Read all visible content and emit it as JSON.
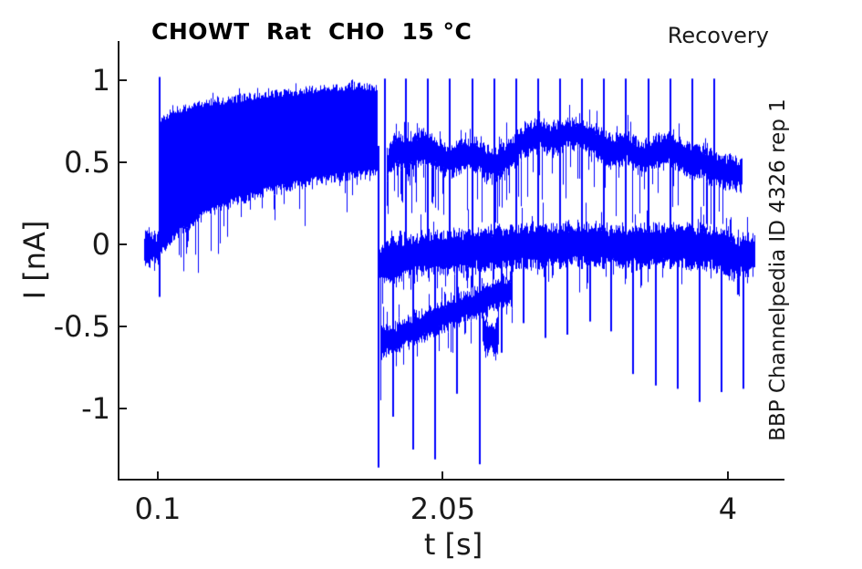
{
  "header": {
    "title": "CHOWT  Rat  CHO  15 °C",
    "corner_note": "Recovery"
  },
  "side_note": "BBP Channelpedia ID 4326 rep 1",
  "chart_data": {
    "type": "line",
    "title": "CHOWT  Rat  CHO  15 °C",
    "xlabel": "t [s]",
    "ylabel": "I [nA]",
    "xticks": [
      0.1,
      2.05,
      4
    ],
    "xtick_labels": [
      "0.1",
      "2.05",
      "4"
    ],
    "yticks": [
      1,
      0.5,
      0,
      -0.5,
      -1
    ],
    "ytick_labels": [
      "1",
      "0.5",
      "0",
      "-0.5",
      "-1"
    ],
    "xlim": [
      -0.168,
      4.375
    ],
    "ylim": [
      -1.428,
      1.239
    ],
    "grid": false,
    "legend": null,
    "trace_color": "#0000ff",
    "axis_color": "#1a1a1a",
    "annotations": [
      "Recovery",
      "BBP Channelpedia ID 4326 rep 1"
    ],
    "signal": {
      "description": "Noisy whole-cell current trace (recovery protocol): baseline at 0 nA, long noisy depolarizing step rising to ~0.95 nA until t=1.6 s, then repeated test pulses every ~0.15 s with spikes to +1 nA and down to -1.35 nA over three noisy bands (~0.55, ~0, ramp -0.6 to -0.3 nA)",
      "baseline": {
        "t_range": [
          0.0,
          0.1
        ],
        "center": 0.0,
        "half_width": 0.12
      },
      "onset_spike": {
        "t": 0.1,
        "from": -0.32,
        "to": 1.02
      },
      "phase1_band": {
        "t_range": [
          0.1,
          1.596
        ],
        "upper_envelope": [
          [
            0.1,
            0.74
          ],
          [
            0.2,
            0.81
          ],
          [
            0.4,
            0.85
          ],
          [
            0.7,
            0.89
          ],
          [
            1.0,
            0.92
          ],
          [
            1.3,
            0.95
          ],
          [
            1.5,
            0.96
          ],
          [
            1.596,
            0.94
          ]
        ],
        "lower_envelope": [
          [
            0.1,
            -0.05
          ],
          [
            0.15,
            0.02
          ],
          [
            0.25,
            0.11
          ],
          [
            0.4,
            0.2
          ],
          [
            0.6,
            0.28
          ],
          [
            0.8,
            0.34
          ],
          [
            1.0,
            0.38
          ],
          [
            1.2,
            0.42
          ],
          [
            1.45,
            0.45
          ],
          [
            1.596,
            0.46
          ]
        ]
      },
      "transition_spike": {
        "t": 1.596,
        "from": 0.6,
        "to": -1.36
      },
      "phase2": {
        "t_range": [
          1.61,
          4.18
        ],
        "middle_band": {
          "half_width": 0.11,
          "center": [
            [
              1.61,
              -0.12
            ],
            [
              1.8,
              -0.07
            ],
            [
              2.0,
              -0.05
            ],
            [
              2.3,
              -0.03
            ],
            [
              2.6,
              -0.01
            ],
            [
              3.0,
              0.0
            ],
            [
              3.3,
              -0.02
            ],
            [
              3.6,
              0.0
            ],
            [
              3.9,
              -0.03
            ],
            [
              4.05,
              -0.08
            ],
            [
              4.18,
              -0.05
            ]
          ]
        },
        "upper_band": {
          "t_range": [
            1.655,
            4.09
          ],
          "half_width": 0.08,
          "center": [
            [
              1.655,
              0.48
            ],
            [
              1.72,
              0.58
            ],
            [
              1.8,
              0.55
            ],
            [
              1.9,
              0.6
            ],
            [
              2.0,
              0.55
            ],
            [
              2.1,
              0.5
            ],
            [
              2.2,
              0.56
            ],
            [
              2.3,
              0.52
            ],
            [
              2.4,
              0.47
            ],
            [
              2.5,
              0.55
            ],
            [
              2.6,
              0.63
            ],
            [
              2.7,
              0.67
            ],
            [
              2.8,
              0.64
            ],
            [
              2.9,
              0.68
            ],
            [
              3.0,
              0.66
            ],
            [
              3.1,
              0.61
            ],
            [
              3.2,
              0.56
            ],
            [
              3.3,
              0.59
            ],
            [
              3.4,
              0.53
            ],
            [
              3.5,
              0.56
            ],
            [
              3.6,
              0.58
            ],
            [
              3.7,
              0.52
            ],
            [
              3.8,
              0.5
            ],
            [
              3.9,
              0.47
            ],
            [
              4.0,
              0.44
            ],
            [
              4.09,
              0.43
            ]
          ]
        },
        "decay_band": {
          "t_range": [
            1.62,
            2.52
          ],
          "half_width": 0.075,
          "center": [
            [
              1.62,
              -0.6
            ],
            [
              1.7,
              -0.58
            ],
            [
              1.8,
              -0.53
            ],
            [
              1.9,
              -0.5
            ],
            [
              2.0,
              -0.46
            ],
            [
              2.1,
              -0.42
            ],
            [
              2.2,
              -0.38
            ],
            [
              2.3,
              -0.35
            ],
            [
              2.4,
              -0.31
            ],
            [
              2.52,
              -0.28
            ]
          ]
        },
        "detached_blob": {
          "t_range": [
            2.315,
            2.425
          ],
          "half_width": 0.09,
          "center": [
            [
              2.315,
              -0.52
            ],
            [
              2.34,
              -0.58
            ],
            [
              2.37,
              -0.55
            ],
            [
              2.4,
              -0.6
            ],
            [
              2.425,
              -0.52
            ]
          ]
        },
        "up_spikes": {
          "peak": 1.01,
          "base": -0.15,
          "times": [
            1.639,
            1.788,
            1.938,
            2.087,
            2.243,
            2.393,
            2.542,
            2.692,
            2.841,
            2.991,
            3.14,
            3.29,
            3.445,
            3.595,
            3.744,
            3.894
          ]
        },
        "down_spikes": [
          [
            1.695,
            -1.05
          ],
          [
            1.838,
            -1.25
          ],
          [
            1.988,
            -1.31
          ],
          [
            2.137,
            -0.91
          ],
          [
            2.293,
            -1.34
          ],
          [
            2.443,
            -0.66
          ],
          [
            2.592,
            -0.48
          ],
          [
            2.742,
            -0.57
          ],
          [
            2.891,
            -0.55
          ],
          [
            3.047,
            -0.47
          ],
          [
            3.19,
            -0.53
          ],
          [
            3.34,
            -0.79
          ],
          [
            3.495,
            -0.86
          ],
          [
            3.645,
            -0.88
          ],
          [
            3.795,
            -0.96
          ],
          [
            3.944,
            -0.9
          ],
          [
            4.094,
            -0.88
          ]
        ]
      },
      "end_t": 4.18
    }
  }
}
